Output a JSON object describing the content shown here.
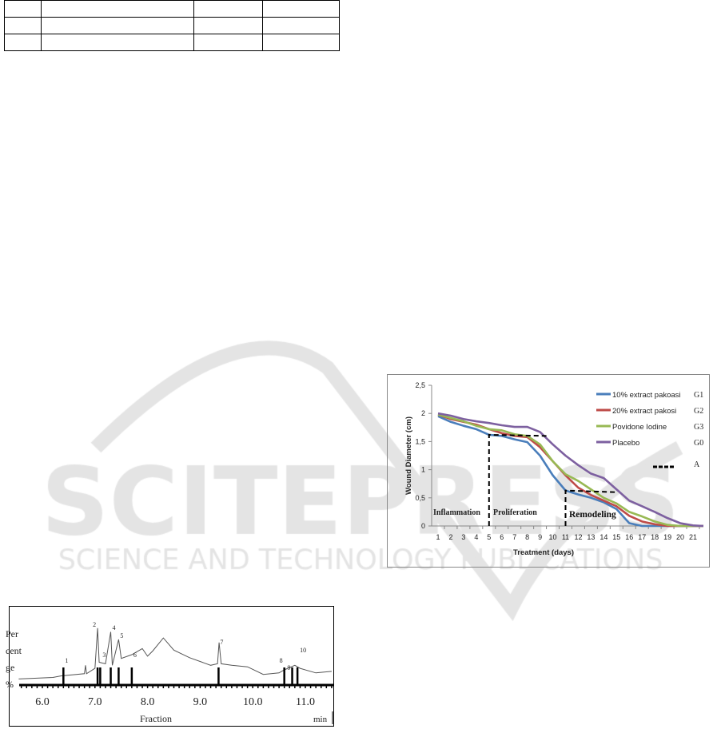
{
  "table": {
    "rows": [
      [
        "",
        "",
        "",
        ""
      ],
      [
        "",
        "",
        "",
        ""
      ],
      [
        "",
        "",
        "",
        ""
      ]
    ]
  },
  "watermark": {
    "line1": "SCITEPRESS",
    "line2": "SCIENCE AND TECHNOLOGY PUBLICATIONS",
    "color": "#e4e4e4"
  },
  "chart_data": [
    {
      "type": "line",
      "xlabel": "Treatment (days)",
      "ylabel": "Wound Diameter (cm)",
      "x": [
        1,
        2,
        3,
        4,
        5,
        6,
        7,
        8,
        9,
        10,
        11,
        12,
        13,
        14,
        15,
        16,
        17,
        18,
        19,
        20,
        21
      ],
      "xticks": [
        "1",
        "2",
        "3",
        "4",
        "5",
        "6",
        "7",
        "8",
        "9",
        "10",
        "11",
        "12",
        "13",
        "14",
        "15",
        "16",
        "17",
        "18",
        "19",
        "20",
        "21"
      ],
      "ylim": [
        0,
        2.5
      ],
      "yticks": [
        "0",
        "0,5",
        "1",
        "1,5",
        "2",
        "2,5"
      ],
      "grid": false,
      "legend_position": "top-right",
      "series": [
        {
          "name": "10% extract pakoasi",
          "group": "G1",
          "color": "#4a7ebb",
          "values": [
            1.95,
            1.85,
            1.78,
            1.72,
            1.62,
            1.6,
            1.54,
            1.49,
            1.25,
            0.9,
            0.63,
            0.56,
            0.5,
            0.42,
            0.3,
            0.05,
            0,
            0,
            0,
            0,
            0
          ]
        },
        {
          "name": "20% extract pakosi",
          "group": "G2",
          "color": "#be4b48",
          "values": [
            1.98,
            1.9,
            1.85,
            1.8,
            1.72,
            1.65,
            1.6,
            1.58,
            1.4,
            1.15,
            0.9,
            0.68,
            0.55,
            0.45,
            0.35,
            0.18,
            0.08,
            0.03,
            0,
            0,
            0
          ]
        },
        {
          "name": "Povidone Iodine",
          "group": "G3",
          "color": "#98b954",
          "values": [
            1.98,
            1.92,
            1.86,
            1.78,
            1.72,
            1.7,
            1.63,
            1.6,
            1.45,
            1.15,
            0.92,
            0.8,
            0.65,
            0.5,
            0.4,
            0.25,
            0.17,
            0.08,
            0.02,
            0,
            0
          ]
        },
        {
          "name": "Placebo",
          "group": "G0",
          "color": "#7d60a0",
          "values": [
            2.0,
            1.96,
            1.9,
            1.86,
            1.83,
            1.79,
            1.76,
            1.76,
            1.67,
            1.45,
            1.25,
            1.08,
            0.93,
            0.85,
            0.65,
            0.45,
            0.35,
            0.25,
            0.14,
            0.05,
            0.01
          ]
        }
      ],
      "reference": {
        "name": "A",
        "segments": [
          [
            [
              5,
              0
            ],
            [
              5,
              1.62
            ],
            [
              9.5,
              1.6
            ]
          ],
          [
            [
              11,
              0
            ],
            [
              11,
              0.63
            ],
            [
              15,
              0.6
            ]
          ]
        ]
      },
      "phase_labels": [
        "Inflammation",
        "Proliferation",
        "Remodeling"
      ]
    },
    {
      "type": "line",
      "xlabel": "Fraction",
      "xunit": "min",
      "ylabel_lines": [
        "Per",
        "cent",
        "ge",
        "%"
      ],
      "xlim": [
        5.55,
        11.5
      ],
      "xticks": [
        "6.0",
        "7.0",
        "8.0",
        "9.0",
        "10.0",
        "11.0"
      ],
      "trace": [
        [
          5.55,
          8
        ],
        [
          6.2,
          10
        ],
        [
          6.35,
          12
        ],
        [
          6.8,
          15
        ],
        [
          6.82,
          26
        ],
        [
          6.84,
          15
        ],
        [
          7.0,
          22
        ],
        [
          7.05,
          75
        ],
        [
          7.08,
          30
        ],
        [
          7.2,
          28
        ],
        [
          7.3,
          70
        ],
        [
          7.33,
          26
        ],
        [
          7.45,
          60
        ],
        [
          7.5,
          35
        ],
        [
          7.7,
          40
        ],
        [
          7.9,
          48
        ],
        [
          8.0,
          38
        ],
        [
          8.1,
          45
        ],
        [
          8.3,
          62
        ],
        [
          8.5,
          46
        ],
        [
          8.8,
          36
        ],
        [
          9.2,
          26
        ],
        [
          9.33,
          28
        ],
        [
          9.36,
          56
        ],
        [
          9.4,
          28
        ],
        [
          9.6,
          26
        ],
        [
          9.9,
          24
        ],
        [
          10.2,
          14
        ],
        [
          10.5,
          16
        ],
        [
          10.6,
          20
        ],
        [
          10.8,
          26
        ],
        [
          10.9,
          22
        ],
        [
          11.2,
          16
        ],
        [
          11.5,
          18
        ]
      ],
      "peaks": [
        {
          "label": "1",
          "x": 6.4
        },
        {
          "label": "2",
          "x": 7.05
        },
        {
          "label": "3",
          "x": 7.1
        },
        {
          "label": "4",
          "x": 7.3
        },
        {
          "label": "5",
          "x": 7.45
        },
        {
          "label": "6",
          "x": 7.7
        },
        {
          "label": "7",
          "x": 9.35
        },
        {
          "label": "8",
          "x": 10.6
        },
        {
          "label": "9",
          "x": 10.75
        },
        {
          "label": "10",
          "x": 10.85
        }
      ]
    }
  ]
}
